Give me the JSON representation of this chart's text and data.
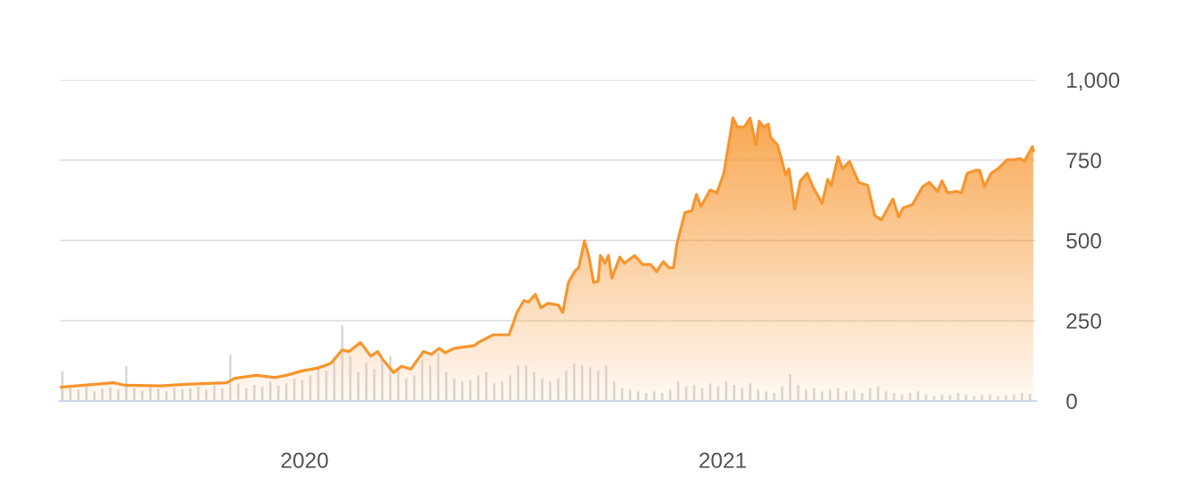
{
  "chart_data": {
    "type": "area",
    "series": [
      {
        "color": "#f7962f",
        "x": [
          "2019-06-01",
          "2019-07-18",
          "2019-07-28",
          "2019-08-28",
          "2019-09-19",
          "2019-10-25",
          "2019-11-01",
          "2019-11-20",
          "2019-12-06",
          "2019-12-16",
          "2019-12-30",
          "2020-01-13",
          "2020-01-24",
          "2020-02-03",
          "2020-02-09",
          "2020-02-19",
          "2020-02-28",
          "2020-03-05",
          "2020-03-10",
          "2020-03-19",
          "2020-03-26",
          "2020-04-03",
          "2020-04-14",
          "2020-04-21",
          "2020-04-28",
          "2020-05-03",
          "2020-05-11",
          "2020-05-29",
          "2020-06-01",
          "2020-06-14",
          "2020-06-28",
          "2020-07-05",
          "2020-07-11",
          "2020-07-15",
          "2020-07-21",
          "2020-07-26",
          "2020-08-01",
          "2020-08-10",
          "2020-08-14",
          "2020-08-19",
          "2020-08-25",
          "2020-08-28",
          "2020-09-02",
          "2020-09-06",
          "2020-09-10",
          "2020-09-14",
          "2020-09-16",
          "2020-09-20",
          "2020-09-23",
          "2020-09-26",
          "2020-10-03",
          "2020-10-07",
          "2020-10-16",
          "2020-10-23",
          "2020-10-30",
          "2020-11-04",
          "2020-11-10",
          "2020-11-15",
          "2020-11-19",
          "2020-11-22",
          "2020-11-29",
          "2020-12-05",
          "2020-12-09",
          "2020-12-13",
          "2020-12-21",
          "2020-12-27",
          "2021-01-02",
          "2021-01-10",
          "2021-01-14",
          "2021-01-20",
          "2021-01-25",
          "2021-01-30",
          "2021-02-02",
          "2021-02-06",
          "2021-02-10",
          "2021-02-12",
          "2021-02-18",
          "2021-02-22",
          "2021-02-25",
          "2021-02-28",
          "2021-03-05",
          "2021-03-10",
          "2021-03-16",
          "2021-03-21",
          "2021-03-29",
          "2021-04-03",
          "2021-04-06",
          "2021-04-12",
          "2021-04-16",
          "2021-04-22",
          "2021-04-30",
          "2021-05-08",
          "2021-05-14",
          "2021-05-20",
          "2021-05-30",
          "2021-06-04",
          "2021-06-08",
          "2021-06-16",
          "2021-06-25",
          "2021-07-01",
          "2021-07-08",
          "2021-07-12",
          "2021-07-17",
          "2021-07-25",
          "2021-07-29",
          "2021-08-03",
          "2021-08-10",
          "2021-08-14",
          "2021-08-18",
          "2021-08-24",
          "2021-08-30",
          "2021-09-07",
          "2021-09-13",
          "2021-09-18",
          "2021-09-22",
          "2021-09-29",
          "2021-09-30"
        ],
        "values": [
          43,
          57,
          49,
          47,
          52,
          57,
          71,
          80,
          73,
          80,
          94,
          103,
          117,
          159,
          154,
          182,
          140,
          154,
          127,
          89,
          108,
          99,
          154,
          145,
          164,
          150,
          164,
          173,
          182,
          206,
          206,
          276,
          313,
          308,
          332,
          290,
          304,
          299,
          276,
          369,
          406,
          415,
          499,
          448,
          369,
          373,
          453,
          429,
          453,
          383,
          448,
          429,
          453,
          425,
          425,
          403,
          434,
          415,
          415,
          490,
          587,
          592,
          643,
          606,
          657,
          648,
          709,
          881,
          853,
          853,
          881,
          797,
          871,
          853,
          862,
          820,
          797,
          746,
          704,
          723,
          597,
          685,
          709,
          667,
          615,
          690,
          671,
          760,
          723,
          746,
          681,
          671,
          578,
          564,
          629,
          573,
          601,
          611,
          667,
          681,
          653,
          685,
          648,
          653,
          648,
          709,
          718,
          718,
          667,
          709,
          723,
          751,
          751,
          755,
          746,
          792,
          779
        ]
      },
      {
        "type": "bar",
        "color": "#d9d9d9",
        "x": [
          "2019-06-03",
          "2019-06-10",
          "2019-06-17",
          "2019-06-24",
          "2019-07-01",
          "2019-07-08",
          "2019-07-15",
          "2019-07-22",
          "2019-07-29",
          "2019-08-05",
          "2019-08-12",
          "2019-08-19",
          "2019-08-26",
          "2019-09-02",
          "2019-09-09",
          "2019-09-16",
          "2019-09-23",
          "2019-09-30",
          "2019-10-07",
          "2019-10-14",
          "2019-10-21",
          "2019-10-28",
          "2019-11-04",
          "2019-11-11",
          "2019-11-18",
          "2019-11-25",
          "2019-12-02",
          "2019-12-09",
          "2019-12-16",
          "2019-12-23",
          "2019-12-30",
          "2020-01-06",
          "2020-01-13",
          "2020-01-20",
          "2020-01-27",
          "2020-02-03",
          "2020-02-10",
          "2020-02-17",
          "2020-02-24",
          "2020-03-02",
          "2020-03-09",
          "2020-03-16",
          "2020-03-23",
          "2020-03-30",
          "2020-04-06",
          "2020-04-13",
          "2020-04-20",
          "2020-04-27",
          "2020-05-04",
          "2020-05-11",
          "2020-05-18",
          "2020-05-25",
          "2020-06-01",
          "2020-06-08",
          "2020-06-15",
          "2020-06-22",
          "2020-06-29",
          "2020-07-06",
          "2020-07-13",
          "2020-07-20",
          "2020-07-27",
          "2020-08-03",
          "2020-08-10",
          "2020-08-17",
          "2020-08-24",
          "2020-08-31",
          "2020-09-07",
          "2020-09-14",
          "2020-09-21",
          "2020-09-28",
          "2020-10-05",
          "2020-10-12",
          "2020-10-19",
          "2020-10-26",
          "2020-11-02",
          "2020-11-09",
          "2020-11-16",
          "2020-11-23",
          "2020-11-30",
          "2020-12-07",
          "2020-12-14",
          "2020-12-21",
          "2020-12-28",
          "2021-01-04",
          "2021-01-11",
          "2021-01-18",
          "2021-01-25",
          "2021-02-01",
          "2021-02-08",
          "2021-02-15",
          "2021-02-22",
          "2021-03-01",
          "2021-03-08",
          "2021-03-15",
          "2021-03-22",
          "2021-03-29",
          "2021-04-05",
          "2021-04-12",
          "2021-04-19",
          "2021-04-26",
          "2021-05-03",
          "2021-05-10",
          "2021-05-17",
          "2021-05-24",
          "2021-05-31",
          "2021-06-07",
          "2021-06-14",
          "2021-06-21",
          "2021-06-28",
          "2021-07-05",
          "2021-07-12",
          "2021-07-19",
          "2021-07-26",
          "2021-08-02",
          "2021-08-09",
          "2021-08-16",
          "2021-08-23",
          "2021-08-30",
          "2021-09-06",
          "2021-09-13",
          "2021-09-20",
          "2021-09-27"
        ],
        "values": [
          93,
          40,
          35,
          45,
          30,
          38,
          42,
          35,
          109,
          40,
          32,
          45,
          38,
          30,
          42,
          36,
          40,
          45,
          35,
          48,
          40,
          145,
          55,
          40,
          50,
          45,
          60,
          48,
          55,
          70,
          65,
          80,
          110,
          95,
          130,
          235,
          140,
          90,
          120,
          100,
          130,
          140,
          95,
          70,
          80,
          130,
          110,
          150,
          90,
          70,
          60,
          65,
          80,
          90,
          55,
          60,
          80,
          110,
          110,
          90,
          70,
          60,
          70,
          95,
          117,
          110,
          105,
          95,
          110,
          60,
          40,
          35,
          30,
          25,
          30,
          25,
          35,
          60,
          45,
          50,
          40,
          55,
          45,
          60,
          50,
          40,
          55,
          35,
          30,
          25,
          45,
          84,
          50,
          35,
          40,
          30,
          35,
          40,
          30,
          35,
          25,
          40,
          45,
          30,
          25,
          20,
          25,
          30,
          20,
          15,
          20,
          18,
          25,
          20,
          15,
          18,
          20,
          15,
          18,
          20,
          25,
          22
        ]
      }
    ],
    "xlim": [
      "2019-06-01",
      "2021-10-02"
    ],
    "xticks": [
      {
        "value": "2020-01-01",
        "label": "2020"
      },
      {
        "value": "2021-01-01",
        "label": "2021"
      }
    ],
    "ylim": [
      0,
      1000
    ],
    "yticks": [
      0,
      250,
      500,
      750,
      {
        "value": 1000,
        "label": "1,000"
      }
    ],
    "grid": "y"
  }
}
